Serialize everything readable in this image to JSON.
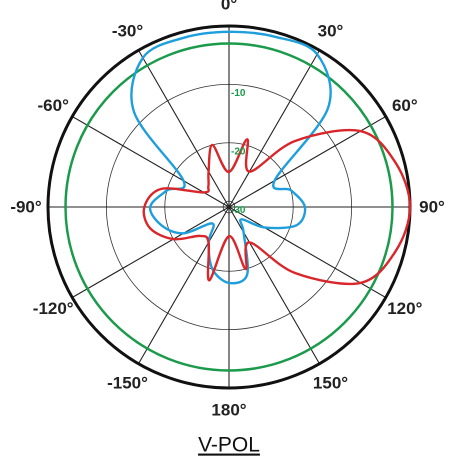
{
  "chart_data": {
    "type": "polar",
    "title": "V-POL",
    "rlim": [
      -31,
      0
    ],
    "rticks": [
      -10,
      -20,
      -30
    ],
    "rtick_color": "#1a9a4a",
    "ref_ring": -3,
    "ref_ring_color": "#1a9a4a",
    "thetaticks": [
      {
        "value": 0,
        "label": "0°"
      },
      {
        "value": 30,
        "label": "30°"
      },
      {
        "value": 60,
        "label": "60°"
      },
      {
        "value": 90,
        "label": "90°"
      },
      {
        "value": 120,
        "label": "120°"
      },
      {
        "value": 150,
        "label": "150°"
      },
      {
        "value": 180,
        "label": "180°"
      },
      {
        "value": -150,
        "label": "-150°"
      },
      {
        "value": -120,
        "label": "-120°"
      },
      {
        "value": -90,
        "label": "-90°"
      },
      {
        "value": -60,
        "label": "-60°"
      },
      {
        "value": -30,
        "label": "-30°"
      }
    ],
    "theta": [
      -165,
      -150,
      -135,
      -120,
      -105,
      -90,
      -75,
      -60,
      -45,
      -30,
      -15,
      0,
      15,
      30,
      45,
      60,
      75,
      90,
      105,
      120,
      135,
      150,
      165,
      180
    ],
    "series": [
      {
        "color": "#1e9fdc",
        "values": [
          -20,
          -24,
          -27,
          -22,
          -19,
          -17.5,
          -20,
          -22,
          -8,
          -1.5,
          -1,
          -1,
          -0.8,
          -0.8,
          -7,
          -22,
          -20,
          -18,
          -19,
          -24,
          -28,
          -26,
          -19,
          -18
        ]
      },
      {
        "color": "#d9262b",
        "values": [
          -18,
          -24,
          -24,
          -20,
          -17,
          -16.5,
          -19,
          -26,
          -26,
          -24,
          -20,
          -25,
          -19,
          -24,
          -15,
          -5,
          -1.5,
          0,
          -1.5,
          -5,
          -15,
          -24,
          -20,
          -26
        ]
      }
    ]
  }
}
